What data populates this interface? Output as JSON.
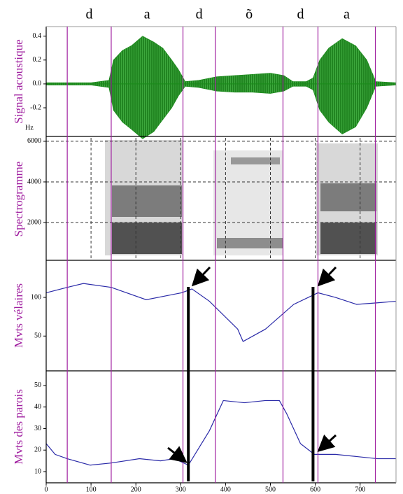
{
  "segments": {
    "labels": [
      "d",
      "a",
      "d",
      "õ",
      "d",
      "a"
    ],
    "boundaries": [
      47,
      145,
      305,
      377,
      528,
      606,
      734
    ]
  },
  "markers": [
    317,
    595
  ],
  "chart_data": [
    {
      "type": "area",
      "ylabel": "Signal acoustique",
      "unit_label": "Hz",
      "color": "#1a8a1a",
      "xlim": [
        0,
        780
      ],
      "ylim": [
        -0.44,
        0.48
      ],
      "yticks": [
        0.4,
        0.2,
        {
          "value": 0,
          "label": "0.0"
        },
        -0.2
      ],
      "x": [
        0,
        100,
        140,
        150,
        170,
        190,
        215,
        240,
        260,
        280,
        295,
        310,
        340,
        380,
        420,
        460,
        500,
        530,
        550,
        580,
        595,
        610,
        630,
        660,
        690,
        715,
        735,
        780
      ],
      "envelope_max": [
        0.01,
        0.01,
        0.03,
        0.2,
        0.28,
        0.32,
        0.4,
        0.35,
        0.3,
        0.2,
        0.12,
        0.02,
        0.03,
        0.06,
        0.07,
        0.08,
        0.09,
        0.07,
        0.02,
        0.02,
        0.05,
        0.2,
        0.3,
        0.38,
        0.32,
        0.2,
        0.02,
        0.01
      ],
      "envelope_min": [
        -0.01,
        -0.01,
        -0.03,
        -0.22,
        -0.32,
        -0.38,
        -0.46,
        -0.4,
        -0.3,
        -0.2,
        -0.1,
        -0.02,
        -0.03,
        -0.06,
        -0.07,
        -0.07,
        -0.08,
        -0.06,
        -0.02,
        -0.02,
        -0.05,
        -0.22,
        -0.32,
        -0.42,
        -0.36,
        -0.2,
        -0.02,
        -0.01
      ]
    },
    {
      "type": "spectrogram",
      "ylabel": "Spectrogramme",
      "xlim": [
        0,
        780
      ],
      "ylim": [
        140,
        6170
      ],
      "yticks": [
        2000,
        4000,
        6000
      ],
      "grid": true
    },
    {
      "type": "line",
      "ylabel": "Mvts vélaires",
      "color": "#2a2aa8",
      "xlim": [
        0,
        780
      ],
      "ylim": [
        5,
        148
      ],
      "yticks": [
        50,
        100
      ],
      "x": [
        0,
        47,
        83,
        145,
        223,
        302,
        325,
        364,
        427,
        439,
        489,
        552,
        606,
        645,
        692,
        739,
        780
      ],
      "values": [
        106,
        113,
        118,
        113,
        97,
        106,
        111,
        95,
        59,
        43,
        59,
        91,
        106,
        100,
        91,
        93,
        95
      ]
    },
    {
      "type": "line",
      "ylabel": "Mvts des parois",
      "color": "#2a2aa8",
      "xlim": [
        0,
        780
      ],
      "ylim": [
        4.8,
        56.8
      ],
      "yticks": [
        10,
        20,
        30,
        40,
        50
      ],
      "xticks": [
        0,
        100,
        200,
        300,
        400,
        500,
        600,
        700
      ],
      "x": [
        0,
        20,
        47,
        98,
        145,
        208,
        255,
        286,
        317,
        364,
        395,
        442,
        489,
        520,
        536,
        567,
        598,
        645,
        739,
        780
      ],
      "values": [
        23,
        18,
        16,
        13,
        14,
        16,
        15,
        16,
        13,
        29,
        43,
        42,
        43,
        43,
        37,
        23,
        18,
        18,
        16,
        16
      ]
    }
  ]
}
